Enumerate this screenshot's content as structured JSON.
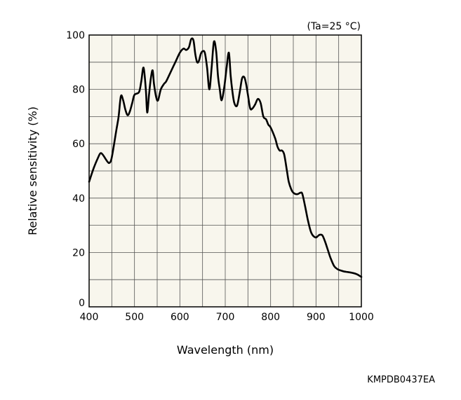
{
  "chart_data": {
    "type": "line",
    "condition_note": "(Ta=25 °C)",
    "xlabel": "Wavelength (nm)",
    "ylabel": "Relative sensitivity (%)",
    "xlim": [
      400,
      1000
    ],
    "ylim": [
      0,
      100
    ],
    "x_ticks": [
      400,
      500,
      600,
      700,
      800,
      900,
      1000
    ],
    "y_ticks": [
      0,
      20,
      40,
      60,
      80,
      100
    ],
    "x_grid_step": 50,
    "y_grid_step": 10,
    "grid": true,
    "plot_background": "#f8f6ed",
    "grid_color": "#555555",
    "line_color": "#000000",
    "series": [
      {
        "x": [
          400,
          410,
          420,
          425,
          430,
          440,
          445,
          450,
          460,
          465,
          470,
          475,
          480,
          485,
          490,
          495,
          500,
          510,
          515,
          520,
          525,
          528,
          532,
          536,
          540,
          543,
          548,
          552,
          558,
          565,
          570,
          580,
          590,
          600,
          608,
          614,
          620,
          625,
          630,
          634,
          638,
          642,
          646,
          650,
          655,
          660,
          665,
          670,
          675,
          680,
          684,
          688,
          692,
          698,
          703,
          708,
          712,
          716,
          720,
          726,
          732,
          737,
          742,
          746,
          750,
          755,
          760,
          766,
          772,
          778,
          784,
          790,
          795,
          800,
          810,
          815,
          820,
          825,
          830,
          836,
          840,
          846,
          850,
          855,
          860,
          866,
          870,
          876,
          882,
          888,
          892,
          896,
          900,
          904,
          908,
          914,
          920,
          926,
          932,
          940,
          948,
          956,
          962,
          970,
          980,
          990,
          1000
        ],
        "y": [
          46,
          51,
          55,
          56.5,
          56,
          53.5,
          53,
          55,
          65,
          70,
          77.5,
          76,
          72.5,
          70.5,
          72,
          75,
          78,
          79,
          83,
          88,
          80,
          71.5,
          78,
          84,
          87,
          82,
          77,
          76,
          80,
          82,
          83,
          86.5,
          90,
          93.5,
          95,
          94.5,
          95.5,
          98.5,
          98,
          93,
          90,
          90.5,
          93,
          94,
          93.5,
          88,
          80,
          88,
          97.5,
          94,
          85,
          80,
          76,
          81,
          88,
          93.5,
          85,
          79,
          75,
          74,
          79,
          84,
          84.5,
          82,
          78,
          73,
          73,
          74.5,
          76.5,
          75,
          70,
          69,
          67,
          66,
          62,
          59,
          57.5,
          57.5,
          56,
          50,
          46,
          43,
          42,
          41.5,
          41.5,
          42,
          41.5,
          37,
          32,
          28,
          26.5,
          25.8,
          25.5,
          26,
          26.5,
          26.3,
          24,
          21,
          18,
          15,
          13.8,
          13.3,
          13,
          12.8,
          12.5,
          12,
          11
        ]
      }
    ]
  },
  "doc_code": "KMPDB0437EA"
}
